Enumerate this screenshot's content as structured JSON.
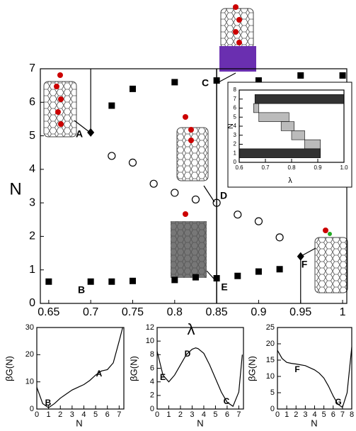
{
  "chart_data": [
    {
      "type": "scatter",
      "xlabel": "λ",
      "ylabel": "N",
      "xlim": [
        0.64,
        1.005
      ],
      "ylim": [
        0,
        7
      ],
      "xticks": [
        0.65,
        0.7,
        0.75,
        0.8,
        0.85,
        0.9,
        0.95,
        1
      ],
      "yticks": [
        0,
        1,
        2,
        3,
        4,
        5,
        6,
        7
      ],
      "vline": 0.85,
      "series": [
        {
          "marker": "square",
          "color": "#000000",
          "x": [
            0.725,
            0.75,
            0.8,
            0.85,
            0.9,
            0.95,
            1.0
          ],
          "values": [
            5.9,
            6.4,
            6.6,
            6.65,
            6.65,
            6.8,
            6.8
          ]
        },
        {
          "marker": "square",
          "color": "#000000",
          "x": [
            0.65,
            0.7,
            0.725,
            0.75,
            0.8,
            0.825,
            0.85,
            0.875,
            0.9,
            0.925
          ],
          "values": [
            0.65,
            0.65,
            0.65,
            0.67,
            0.7,
            0.78,
            0.75,
            0.82,
            0.95,
            1.02
          ]
        },
        {
          "marker": "circle",
          "color": "#000000",
          "x": [
            0.725,
            0.75,
            0.775,
            0.8,
            0.825,
            0.85,
            0.875,
            0.9,
            0.925
          ],
          "values": [
            4.4,
            4.2,
            3.57,
            3.3,
            3.1,
            3.0,
            2.65,
            2.45,
            1.97
          ]
        },
        {
          "marker": "diamond",
          "color": "#000000",
          "x": [
            0.7,
            0.95
          ],
          "values": [
            5.1,
            1.4
          ]
        }
      ],
      "annotations": [
        "A",
        "B",
        "C",
        "D",
        "E",
        "F"
      ]
    },
    {
      "type": "range-bar",
      "xlabel": "λ",
      "ylabel": "N",
      "xlim": [
        0.6,
        1.0
      ],
      "ylim": [
        0,
        8
      ],
      "xticks": [
        {
          "value": 0.6,
          "label": "0.6"
        },
        0.7,
        0.8,
        0.9,
        {
          "value": 1,
          "label": "1.0"
        }
      ],
      "yticks": [
        0,
        1,
        2,
        3,
        4,
        5,
        6,
        7,
        8
      ],
      "levels": [
        7,
        6,
        5,
        4,
        3,
        2,
        1
      ],
      "starts": [
        0.66,
        0.655,
        0.675,
        0.76,
        0.8,
        0.85,
        0.6
      ],
      "ends": [
        1.0,
        0.675,
        0.79,
        0.81,
        0.85,
        0.91,
        0.91
      ],
      "colors": [
        "#333333",
        "#bbbbbb",
        "#bbbbbb",
        "#bbbbbb",
        "#bbbbbb",
        "#bbbbbb",
        "#333333"
      ]
    },
    {
      "type": "line",
      "xlabel": "N",
      "ylabel": "βG(N)",
      "xlim": [
        0,
        7.4
      ],
      "ylim": [
        0,
        30
      ],
      "xticks": [
        0,
        1,
        2,
        3,
        4,
        5,
        6,
        7
      ],
      "yticks": [
        0,
        10,
        20,
        30
      ],
      "color": "#000000",
      "x": [
        0,
        0.5,
        1,
        1.5,
        2,
        2.5,
        3,
        3.5,
        4,
        4.5,
        5,
        5.5,
        6,
        6.5,
        7,
        7.3
      ],
      "values": [
        8,
        2,
        0.5,
        2,
        4,
        5.5,
        7,
        8,
        9,
        10.5,
        12.5,
        14,
        14.5,
        17,
        25,
        30
      ],
      "annotations": [
        "A",
        "B"
      ]
    },
    {
      "type": "line",
      "xlabel": "N",
      "ylabel": "βG(N)",
      "xlim": [
        0,
        7.4
      ],
      "ylim": [
        0,
        12
      ],
      "xticks": [
        0,
        1,
        2,
        3,
        4,
        5,
        6,
        7
      ],
      "yticks": [
        0,
        2,
        4,
        6,
        8,
        10,
        12
      ],
      "color": "#000000",
      "x": [
        0,
        0.5,
        1,
        1.5,
        2,
        2.5,
        3,
        3.3,
        3.5,
        4,
        4.5,
        5,
        5.5,
        6,
        6.5,
        7,
        7.3
      ],
      "values": [
        8.5,
        5,
        4,
        5,
        6.5,
        8,
        8.8,
        9,
        8.9,
        8.2,
        6.5,
        4.5,
        2.5,
        1,
        0.4,
        2.5,
        8
      ],
      "annotations": [
        "D",
        "E",
        "C"
      ]
    },
    {
      "type": "line",
      "xlabel": "N",
      "ylabel": "βG(N)",
      "xlim": [
        0,
        8
      ],
      "ylim": [
        0,
        25
      ],
      "xticks": [
        0,
        1,
        2,
        3,
        4,
        5,
        6,
        7,
        8
      ],
      "yticks": [
        0,
        5,
        10,
        15,
        20,
        25
      ],
      "color": "#000000",
      "x": [
        0,
        0.5,
        1,
        1.5,
        2,
        3,
        4,
        4.5,
        5,
        5.5,
        6,
        6.5,
        7,
        7.5,
        8
      ],
      "values": [
        18,
        15.5,
        14.3,
        14,
        13.8,
        13.3,
        12,
        11,
        9.5,
        7,
        4,
        1.5,
        0.5,
        5,
        19
      ],
      "annotations": [
        "F",
        "G"
      ]
    }
  ]
}
